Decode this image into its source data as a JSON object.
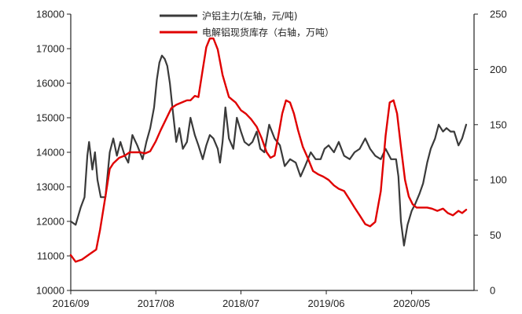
{
  "chart_data": {
    "type": "line",
    "title": "",
    "xlabel": "",
    "ylabel": "",
    "y2label": "",
    "grid": false,
    "legend_position": "top-center",
    "x_ticks": [
      "2016/09",
      "2017/08",
      "2018/07",
      "2019/06",
      "2020/05"
    ],
    "x_range": [
      "2016-09",
      "2021-01"
    ],
    "y_left": {
      "ticks": [
        10000,
        11000,
        12000,
        13000,
        14000,
        15000,
        16000,
        17000,
        18000
      ],
      "range": [
        10000,
        18000
      ]
    },
    "y_right": {
      "ticks": [
        0,
        50,
        100,
        150,
        200,
        250
      ],
      "range": [
        0,
        250
      ]
    },
    "series": [
      {
        "name": "沪铝主力(左轴，元/吨)",
        "axis": "left",
        "color": "#3a3a3a",
        "x": [
          "2016-09-01",
          "2016-09-20",
          "2016-10-10",
          "2016-10-25",
          "2016-11-05",
          "2016-11-12",
          "2016-11-25",
          "2016-12-05",
          "2016-12-15",
          "2016-12-28",
          "2017-01-15",
          "2017-02-01",
          "2017-02-15",
          "2017-03-01",
          "2017-03-15",
          "2017-04-01",
          "2017-04-15",
          "2017-05-01",
          "2017-05-20",
          "2017-06-10",
          "2017-06-25",
          "2017-07-10",
          "2017-07-25",
          "2017-08-05",
          "2017-08-15",
          "2017-08-25",
          "2017-09-05",
          "2017-09-15",
          "2017-09-25",
          "2017-10-05",
          "2017-10-20",
          "2017-11-01",
          "2017-11-15",
          "2017-12-01",
          "2017-12-15",
          "2018-01-01",
          "2018-01-15",
          "2018-02-01",
          "2018-02-15",
          "2018-03-01",
          "2018-03-15",
          "2018-04-01",
          "2018-04-10",
          "2018-04-20",
          "2018-05-01",
          "2018-05-15",
          "2018-06-01",
          "2018-06-15",
          "2018-07-01",
          "2018-07-15",
          "2018-08-01",
          "2018-08-15",
          "2018-09-01",
          "2018-09-15",
          "2018-10-01",
          "2018-10-20",
          "2018-11-10",
          "2018-12-01",
          "2018-12-20",
          "2019-01-10",
          "2019-02-01",
          "2019-02-20",
          "2019-03-10",
          "2019-04-01",
          "2019-04-20",
          "2019-05-10",
          "2019-05-25",
          "2019-06-10",
          "2019-07-01",
          "2019-07-20",
          "2019-08-10",
          "2019-09-01",
          "2019-09-20",
          "2019-10-10",
          "2019-11-01",
          "2019-11-20",
          "2019-12-10",
          "2020-01-01",
          "2020-01-20",
          "2020-02-10",
          "2020-03-01",
          "2020-03-10",
          "2020-03-20",
          "2020-04-01",
          "2020-04-15",
          "2020-05-01",
          "2020-05-15",
          "2020-06-01",
          "2020-06-15",
          "2020-07-01",
          "2020-07-15",
          "2020-08-01",
          "2020-08-15",
          "2020-09-01",
          "2020-09-15",
          "2020-10-01",
          "2020-10-15",
          "2020-11-01",
          "2020-11-15",
          "2020-12-01"
        ],
        "values": [
          12000,
          11900,
          12400,
          12700,
          13900,
          14300,
          13500,
          14000,
          13200,
          12700,
          12700,
          14000,
          14400,
          13900,
          14300,
          13900,
          13700,
          14500,
          14200,
          13800,
          14300,
          14700,
          15300,
          16100,
          16600,
          16800,
          16700,
          16500,
          16000,
          15300,
          14300,
          14700,
          14100,
          14300,
          15000,
          14500,
          14200,
          13800,
          14200,
          14500,
          14400,
          14100,
          13700,
          14300,
          15300,
          14400,
          14100,
          15000,
          14600,
          14300,
          14200,
          14300,
          14600,
          14100,
          14000,
          14800,
          14400,
          14200,
          13600,
          13800,
          13700,
          13300,
          13600,
          14000,
          13800,
          13800,
          14100,
          14200,
          14000,
          14300,
          13900,
          13800,
          14000,
          14100,
          14400,
          14100,
          13900,
          13800,
          14100,
          13800,
          13800,
          13300,
          12000,
          11300,
          11900,
          12300,
          12500,
          12800,
          13100,
          13700,
          14100,
          14400,
          14800,
          14600,
          14700,
          14600,
          14600,
          14200,
          14400,
          14800
        ]
      },
      {
        "name": "电解铝现货库存（右轴，万吨）",
        "axis": "right",
        "color": "#e00000",
        "x": [
          "2016-09-01",
          "2016-09-20",
          "2016-10-15",
          "2016-11-15",
          "2016-12-10",
          "2016-12-25",
          "2017-01-15",
          "2017-02-01",
          "2017-02-15",
          "2017-03-10",
          "2017-04-01",
          "2017-04-20",
          "2017-05-10",
          "2017-06-01",
          "2017-06-20",
          "2017-07-10",
          "2017-08-01",
          "2017-08-20",
          "2017-09-10",
          "2017-10-01",
          "2017-10-20",
          "2017-11-10",
          "2017-12-01",
          "2017-12-15",
          "2018-01-01",
          "2018-01-15",
          "2018-02-01",
          "2018-02-15",
          "2018-03-01",
          "2018-03-15",
          "2018-04-01",
          "2018-04-20",
          "2018-05-15",
          "2018-06-10",
          "2018-07-01",
          "2018-07-20",
          "2018-08-10",
          "2018-09-01",
          "2018-09-20",
          "2018-10-10",
          "2018-10-25",
          "2018-11-10",
          "2018-11-25",
          "2018-12-10",
          "2018-12-25",
          "2019-01-10",
          "2019-01-25",
          "2019-02-10",
          "2019-03-01",
          "2019-03-20",
          "2019-04-10",
          "2019-05-01",
          "2019-05-20",
          "2019-06-10",
          "2019-07-01",
          "2019-07-20",
          "2019-08-10",
          "2019-09-01",
          "2019-09-20",
          "2019-10-10",
          "2019-11-01",
          "2019-11-20",
          "2019-12-10",
          "2020-01-01",
          "2020-01-20",
          "2020-02-05",
          "2020-02-20",
          "2020-03-05",
          "2020-03-20",
          "2020-04-05",
          "2020-04-20",
          "2020-05-05",
          "2020-05-20",
          "2020-06-10",
          "2020-07-01",
          "2020-07-20",
          "2020-08-10",
          "2020-09-01",
          "2020-09-20",
          "2020-10-10",
          "2020-11-01",
          "2020-11-15",
          "2020-12-01"
        ],
        "values": [
          32,
          26,
          28,
          33,
          37,
          55,
          85,
          110,
          115,
          120,
          122,
          125,
          125,
          125,
          124,
          126,
          135,
          145,
          155,
          165,
          168,
          170,
          172,
          172,
          176,
          175,
          200,
          220,
          228,
          228,
          218,
          195,
          175,
          170,
          163,
          160,
          155,
          148,
          138,
          125,
          120,
          122,
          140,
          160,
          172,
          170,
          160,
          145,
          130,
          120,
          108,
          105,
          103,
          100,
          95,
          92,
          90,
          82,
          75,
          68,
          60,
          58,
          62,
          90,
          140,
          170,
          172,
          160,
          130,
          100,
          85,
          78,
          75,
          75,
          75,
          74,
          72,
          74,
          70,
          68,
          72,
          70,
          73
        ]
      }
    ]
  }
}
